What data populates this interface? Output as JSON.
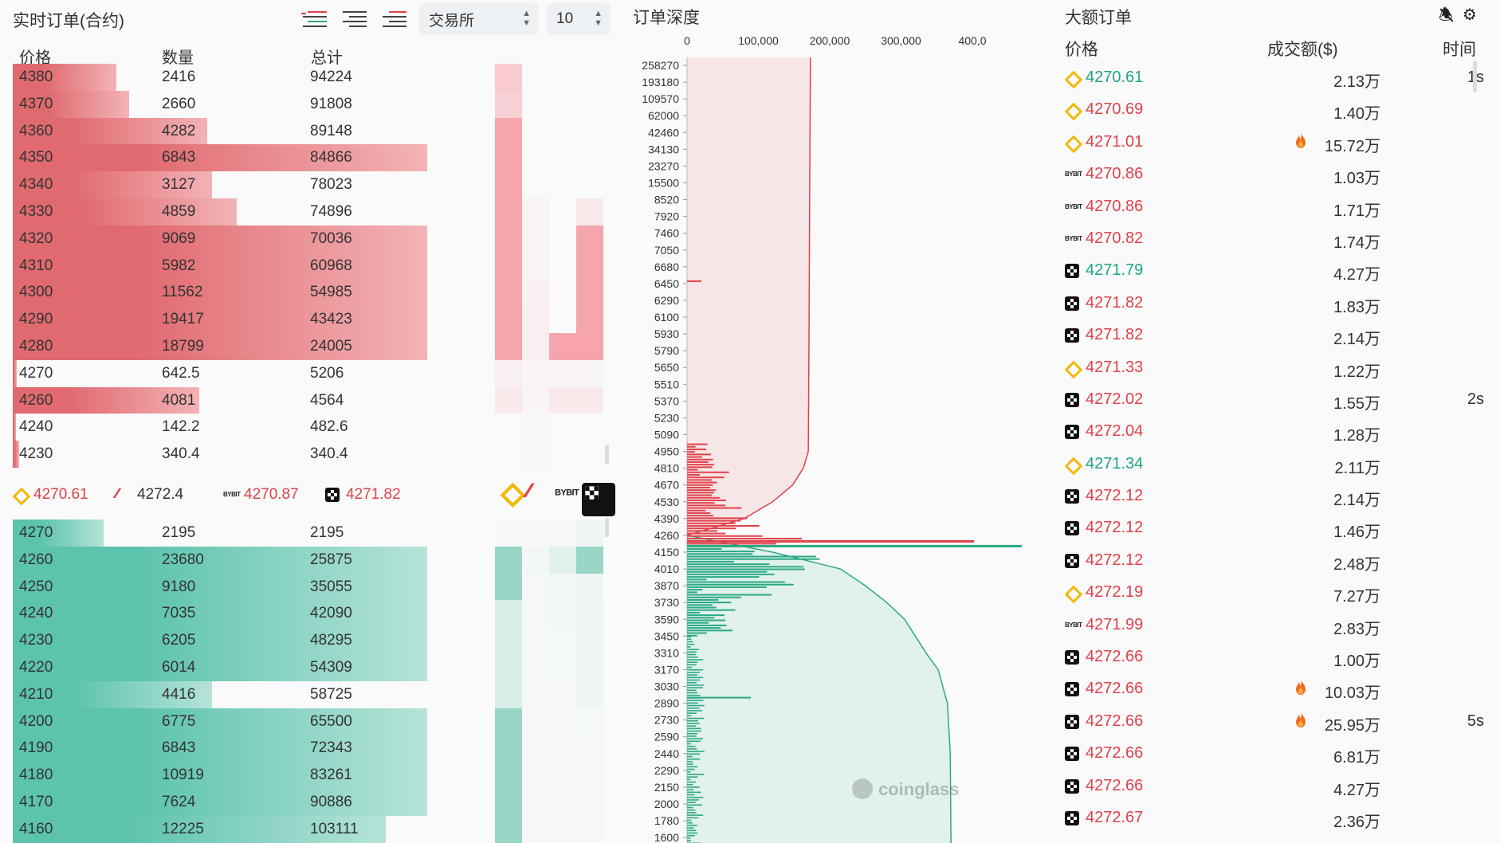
{
  "orderbook": {
    "title": "实时订单(合约)",
    "exchange_select": "交易所",
    "depth_select": "10",
    "headers": {
      "price": "价格",
      "qty": "数量",
      "total": "总计"
    },
    "asks": [
      {
        "price": "4380",
        "qty": "2416",
        "total": "94224",
        "fill": 0.25,
        "heat": [
          0.55,
          0,
          0,
          0
        ]
      },
      {
        "price": "4370",
        "qty": "2660",
        "total": "91808",
        "fill": 0.28,
        "heat": [
          0.5,
          0,
          0,
          0
        ]
      },
      {
        "price": "4360",
        "qty": "4282",
        "total": "89148",
        "fill": 0.47,
        "heat": [
          1,
          0,
          0,
          0
        ]
      },
      {
        "price": "4350",
        "qty": "6843",
        "total": "84866",
        "fill": 1,
        "heat": [
          1,
          0,
          0,
          0
        ]
      },
      {
        "price": "4340",
        "qty": "3127",
        "total": "78023",
        "fill": 0.48,
        "heat": [
          1,
          0,
          0,
          0
        ]
      },
      {
        "price": "4330",
        "qty": "4859",
        "total": "74896",
        "fill": 0.54,
        "heat": [
          1,
          0.08,
          0,
          0.2
        ]
      },
      {
        "price": "4320",
        "qty": "9069",
        "total": "70036",
        "fill": 1,
        "heat": [
          1,
          0.08,
          0,
          1
        ]
      },
      {
        "price": "4310",
        "qty": "5982",
        "total": "60968",
        "fill": 1,
        "heat": [
          1,
          0.08,
          0,
          1
        ]
      },
      {
        "price": "4300",
        "qty": "11562",
        "total": "54985",
        "fill": 1,
        "heat": [
          1,
          0.1,
          0,
          1
        ]
      },
      {
        "price": "4290",
        "qty": "19417",
        "total": "43423",
        "fill": 1,
        "heat": [
          1,
          0.12,
          0,
          1
        ]
      },
      {
        "price": "4280",
        "qty": "18799",
        "total": "24005",
        "fill": 1,
        "heat": [
          1,
          0.12,
          1,
          1
        ]
      },
      {
        "price": "4270",
        "qty": "642.5",
        "total": "5206",
        "fill": 0.01,
        "heat": [
          0.12,
          0.05,
          0.05,
          0.05
        ]
      },
      {
        "price": "4260",
        "qty": "4081",
        "total": "4564",
        "fill": 0.45,
        "heat": [
          0.2,
          0.05,
          0.2,
          0.2
        ]
      },
      {
        "price": "4240",
        "qty": "142.2",
        "total": "482.6",
        "fill": 0.005,
        "heat": [
          0,
          0.03,
          0,
          0
        ]
      },
      {
        "price": "4230",
        "qty": "340.4",
        "total": "340.4",
        "fill": 0.015,
        "heat": [
          0,
          0.03,
          0,
          0
        ]
      }
    ],
    "mid_prices": [
      {
        "exchange": "Binance",
        "price": "4270.61",
        "logo": "binance-icon"
      },
      {
        "exchange": "BitMEX",
        "price": "4272.4",
        "logo": "bitmex-icon"
      },
      {
        "exchange": "Bybit",
        "price": "4270.87",
        "logo": "bybit-icon"
      },
      {
        "exchange": "OKX",
        "price": "4271.82",
        "logo": "okx-icon"
      }
    ],
    "bids": [
      {
        "price": "4270",
        "qty": "2195",
        "total": "2195",
        "fill": 0.22,
        "heat": [
          0.05,
          0.03,
          0.05,
          0.1
        ]
      },
      {
        "price": "4260",
        "qty": "23680",
        "total": "25875",
        "fill": 1,
        "heat": [
          1,
          0.08,
          0.25,
          1
        ]
      },
      {
        "price": "4250",
        "qty": "9180",
        "total": "35055",
        "fill": 1,
        "heat": [
          1,
          0.05,
          0.08,
          0.12
        ]
      },
      {
        "price": "4240",
        "qty": "7035",
        "total": "42090",
        "fill": 1,
        "heat": [
          0.35,
          0.05,
          0.08,
          0.1
        ]
      },
      {
        "price": "4230",
        "qty": "6205",
        "total": "48295",
        "fill": 1,
        "heat": [
          0.35,
          0.05,
          0.06,
          0.1
        ]
      },
      {
        "price": "4220",
        "qty": "6014",
        "total": "54309",
        "fill": 1,
        "heat": [
          0.35,
          0.05,
          0.06,
          0.1
        ]
      },
      {
        "price": "4210",
        "qty": "4416",
        "total": "58725",
        "fill": 0.48,
        "heat": [
          0.35,
          0.05,
          0.04,
          0.1
        ]
      },
      {
        "price": "4200",
        "qty": "6775",
        "total": "65500",
        "fill": 1,
        "heat": [
          1,
          0.05,
          0.04,
          0.06
        ]
      },
      {
        "price": "4190",
        "qty": "6843",
        "total": "72343",
        "fill": 1,
        "heat": [
          1,
          0.04,
          0.04,
          0.05
        ]
      },
      {
        "price": "4180",
        "qty": "10919",
        "total": "83261",
        "fill": 1,
        "heat": [
          1,
          0.04,
          0.04,
          0.05
        ]
      },
      {
        "price": "4170",
        "qty": "7624",
        "total": "90886",
        "fill": 1,
        "heat": [
          1,
          0.04,
          0.04,
          0.05
        ]
      },
      {
        "price": "4160",
        "qty": "12225",
        "total": "103111",
        "fill": 0.9,
        "heat": [
          1,
          0.03,
          0.03,
          0.04
        ]
      }
    ],
    "colors": {
      "ask": "#e06a70",
      "ask_light": "#f3b3b6",
      "bid": "#5cc3ad",
      "bid_light": "#b6e3d9",
      "heat_ask": "#f5a5ab",
      "heat_bid": "#98d7c8"
    }
  },
  "depth": {
    "title": "订单深度",
    "watermark": "coinglass",
    "chart_data": {
      "type": "area",
      "x_ticks": [
        "0",
        "100,000",
        "200,000",
        "300,000",
        "400,0"
      ],
      "xlim": [
        0,
        400000
      ],
      "y_ticks": [
        "258270",
        "193180",
        "109570",
        "62000",
        "42460",
        "34130",
        "23270",
        "15500",
        "8520",
        "7920",
        "7460",
        "7050",
        "6680",
        "6450",
        "6290",
        "6100",
        "5930",
        "5790",
        "5650",
        "5510",
        "5370",
        "5230",
        "5090",
        "4950",
        "4810",
        "4670",
        "4530",
        "4390",
        "4260",
        "4150",
        "4010",
        "3870",
        "3730",
        "3590",
        "3450",
        "3310",
        "3170",
        "3030",
        "2890",
        "2730",
        "2590",
        "2440",
        "2290",
        "2150",
        "2000",
        "1780",
        "1600"
      ],
      "series": [
        {
          "side": "ask",
          "cumulative": [
            [
              258270,
              173000
            ],
            [
              15500,
              172000
            ],
            [
              5930,
              171000
            ],
            [
              4950,
              170000
            ],
            [
              4810,
              163000
            ],
            [
              4670,
              148000
            ],
            [
              4530,
              120000
            ],
            [
              4390,
              80000
            ],
            [
              4260,
              0
            ]
          ]
        },
        {
          "side": "bid",
          "cumulative": [
            [
              4260,
              0
            ],
            [
              4150,
              120000
            ],
            [
              4010,
              215000
            ],
            [
              3870,
              250000
            ],
            [
              3730,
              280000
            ],
            [
              3590,
              305000
            ],
            [
              3450,
              320000
            ],
            [
              3310,
              335000
            ],
            [
              3170,
              352000
            ],
            [
              2890,
              365000
            ],
            [
              2440,
              369000
            ],
            [
              1600,
              370000
            ]
          ]
        }
      ]
    }
  },
  "large": {
    "title": "大额订单",
    "headers": {
      "price": "价格",
      "amount": "成交额($)",
      "time": "时间"
    },
    "rows": [
      {
        "ex": "binance",
        "price": "4270.61",
        "side": "up",
        "amount": "2.13万",
        "hot": false,
        "time": "1s"
      },
      {
        "ex": "binance",
        "price": "4270.69",
        "side": "down",
        "amount": "1.40万",
        "hot": false,
        "time": ""
      },
      {
        "ex": "binance",
        "price": "4271.01",
        "side": "down",
        "amount": "15.72万",
        "hot": true,
        "time": ""
      },
      {
        "ex": "bybit",
        "price": "4270.86",
        "side": "down",
        "amount": "1.03万",
        "hot": false,
        "time": ""
      },
      {
        "ex": "bybit",
        "price": "4270.86",
        "side": "down",
        "amount": "1.71万",
        "hot": false,
        "time": ""
      },
      {
        "ex": "bybit",
        "price": "4270.82",
        "side": "down",
        "amount": "1.74万",
        "hot": false,
        "time": ""
      },
      {
        "ex": "okx",
        "price": "4271.79",
        "side": "up",
        "amount": "4.27万",
        "hot": false,
        "time": ""
      },
      {
        "ex": "okx",
        "price": "4271.82",
        "side": "down",
        "amount": "1.83万",
        "hot": false,
        "time": ""
      },
      {
        "ex": "okx",
        "price": "4271.82",
        "side": "down",
        "amount": "2.14万",
        "hot": false,
        "time": ""
      },
      {
        "ex": "binance",
        "price": "4271.33",
        "side": "down",
        "amount": "1.22万",
        "hot": false,
        "time": ""
      },
      {
        "ex": "okx",
        "price": "4272.02",
        "side": "down",
        "amount": "1.55万",
        "hot": false,
        "time": "2s"
      },
      {
        "ex": "okx",
        "price": "4272.04",
        "side": "down",
        "amount": "1.28万",
        "hot": false,
        "time": ""
      },
      {
        "ex": "binance",
        "price": "4271.34",
        "side": "up",
        "amount": "2.11万",
        "hot": false,
        "time": ""
      },
      {
        "ex": "okx",
        "price": "4272.12",
        "side": "down",
        "amount": "2.14万",
        "hot": false,
        "time": ""
      },
      {
        "ex": "okx",
        "price": "4272.12",
        "side": "down",
        "amount": "1.46万",
        "hot": false,
        "time": ""
      },
      {
        "ex": "okx",
        "price": "4272.12",
        "side": "down",
        "amount": "2.48万",
        "hot": false,
        "time": ""
      },
      {
        "ex": "binance",
        "price": "4272.19",
        "side": "down",
        "amount": "7.27万",
        "hot": false,
        "time": ""
      },
      {
        "ex": "bybit",
        "price": "4271.99",
        "side": "down",
        "amount": "2.83万",
        "hot": false,
        "time": ""
      },
      {
        "ex": "okx",
        "price": "4272.66",
        "side": "down",
        "amount": "1.00万",
        "hot": false,
        "time": ""
      },
      {
        "ex": "okx",
        "price": "4272.66",
        "side": "down",
        "amount": "10.03万",
        "hot": true,
        "time": ""
      },
      {
        "ex": "okx",
        "price": "4272.66",
        "side": "down",
        "amount": "25.95万",
        "hot": true,
        "time": "5s"
      },
      {
        "ex": "okx",
        "price": "4272.66",
        "side": "down",
        "amount": "6.81万",
        "hot": false,
        "time": ""
      },
      {
        "ex": "okx",
        "price": "4272.66",
        "side": "down",
        "amount": "4.27万",
        "hot": false,
        "time": ""
      },
      {
        "ex": "okx",
        "price": "4272.67",
        "side": "down",
        "amount": "2.36万",
        "hot": false,
        "time": ""
      }
    ]
  }
}
